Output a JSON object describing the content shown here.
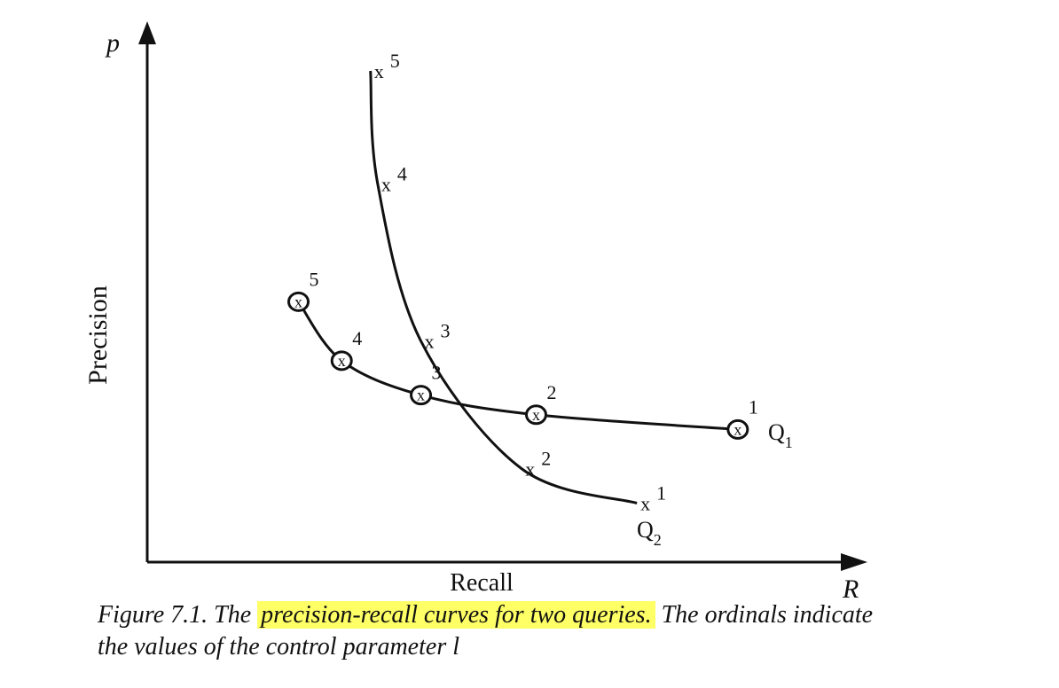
{
  "chart_data": {
    "type": "line",
    "x_axis": {
      "symbol": "R",
      "label": "Recall"
    },
    "y_axis": {
      "symbol": "p",
      "label": "Precision"
    },
    "tick_labels": "none",
    "grid": false,
    "series": [
      {
        "name": "Q1",
        "name_base": "Q",
        "name_sub": "1",
        "marker": "circled-x",
        "points": [
          {
            "label": "1",
            "x": 0.82,
            "y": 0.27
          },
          {
            "label": "2",
            "x": 0.54,
            "y": 0.3
          },
          {
            "label": "3",
            "x": 0.38,
            "y": 0.34
          },
          {
            "label": "4",
            "x": 0.27,
            "y": 0.41
          },
          {
            "label": "5",
            "x": 0.21,
            "y": 0.53
          }
        ]
      },
      {
        "name": "Q2",
        "name_base": "Q",
        "name_sub": "2",
        "marker": "x",
        "points": [
          {
            "label": "1",
            "x": 0.68,
            "y": 0.12
          },
          {
            "label": "2",
            "x": 0.52,
            "y": 0.19
          },
          {
            "label": "3",
            "x": 0.38,
            "y": 0.45
          },
          {
            "label": "4",
            "x": 0.32,
            "y": 0.77
          },
          {
            "label": "5",
            "x": 0.31,
            "y": 1.0
          }
        ]
      }
    ]
  },
  "caption": {
    "lead": "Figure 7.1.  The ",
    "highlight": "precision-recall  curves for two queries.",
    "rest": "  The ordinals indicate",
    "line2": "the values of the control parameter  l"
  }
}
